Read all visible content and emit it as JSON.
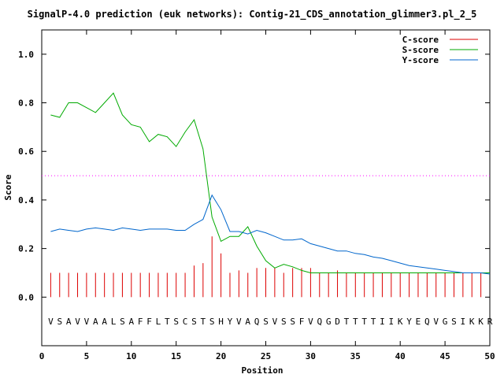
{
  "chart_data": {
    "type": "line",
    "title": "SignalP-4.0 prediction (euk networks): Contig-21_CDS_annotation_glimmer3.pl_2_5",
    "xlabel": "Position",
    "ylabel": "Score",
    "xlim": [
      0,
      50
    ],
    "ylim": [
      -0.2,
      1.1
    ],
    "xticks": [
      0,
      5,
      10,
      15,
      20,
      25,
      30,
      35,
      40,
      45,
      50
    ],
    "yticks": [
      0.0,
      0.2,
      0.4,
      0.6,
      0.8,
      1.0
    ],
    "ytick_labels": [
      "0.0",
      "0.2",
      "0.4",
      "0.6",
      "0.8",
      "1.0"
    ],
    "threshold": 0.5,
    "threshold_color": "#ff00ff",
    "legend_position": "top-right",
    "residues": [
      "V",
      "S",
      "A",
      "V",
      "V",
      "A",
      "A",
      "L",
      "S",
      "A",
      "F",
      "F",
      "L",
      "T",
      "S",
      "C",
      "S",
      "T",
      "S",
      "H",
      "Y",
      "V",
      "A",
      "Q",
      "S",
      "V",
      "S",
      "S",
      "F",
      "V",
      "Q",
      "G",
      "D",
      "T",
      "T",
      "T",
      "T",
      "I",
      "I",
      "K",
      "Y",
      "E",
      "Q",
      "V",
      "G",
      "S",
      "I",
      "K",
      "K",
      "R"
    ],
    "series": [
      {
        "name": "C-score",
        "kind": "bars",
        "color": "#dd0000",
        "x": [
          1,
          2,
          3,
          4,
          5,
          6,
          7,
          8,
          9,
          10,
          11,
          12,
          13,
          14,
          15,
          16,
          17,
          18,
          19,
          20,
          21,
          22,
          23,
          24,
          25,
          26,
          27,
          28,
          29,
          30,
          31,
          32,
          33,
          34,
          35,
          36,
          37,
          38,
          39,
          40,
          41,
          42,
          43,
          44,
          45,
          46,
          47,
          48,
          49
        ],
        "values": [
          0.1,
          0.1,
          0.1,
          0.1,
          0.1,
          0.1,
          0.1,
          0.1,
          0.1,
          0.1,
          0.1,
          0.1,
          0.1,
          0.1,
          0.1,
          0.1,
          0.13,
          0.14,
          0.25,
          0.18,
          0.1,
          0.11,
          0.1,
          0.12,
          0.12,
          0.12,
          0.1,
          0.12,
          0.12,
          0.12,
          0.1,
          0.1,
          0.11,
          0.1,
          0.1,
          0.1,
          0.1,
          0.1,
          0.1,
          0.1,
          0.1,
          0.1,
          0.1,
          0.1,
          0.1,
          0.1,
          0.1,
          0.1,
          0.1
        ]
      },
      {
        "name": "S-score",
        "kind": "line",
        "color": "#00aa00",
        "x": [
          1,
          2,
          3,
          4,
          5,
          6,
          7,
          8,
          9,
          10,
          11,
          12,
          13,
          14,
          15,
          16,
          17,
          18,
          19,
          20,
          21,
          22,
          23,
          24,
          25,
          26,
          27,
          28,
          29,
          30,
          31,
          32,
          33,
          34,
          35,
          36,
          37,
          38,
          39,
          40,
          41,
          42,
          43,
          44,
          45,
          46,
          47,
          48,
          49,
          50
        ],
        "values": [
          0.75,
          0.74,
          0.8,
          0.8,
          0.78,
          0.76,
          0.8,
          0.84,
          0.75,
          0.71,
          0.7,
          0.64,
          0.67,
          0.66,
          0.62,
          0.68,
          0.73,
          0.61,
          0.33,
          0.23,
          0.25,
          0.25,
          0.29,
          0.21,
          0.15,
          0.12,
          0.135,
          0.125,
          0.11,
          0.1,
          0.1,
          0.1,
          0.1,
          0.1,
          0.1,
          0.1,
          0.1,
          0.1,
          0.1,
          0.1,
          0.1,
          0.1,
          0.1,
          0.1,
          0.1,
          0.1,
          0.1,
          0.1,
          0.1,
          0.1
        ]
      },
      {
        "name": "Y-score",
        "kind": "line",
        "color": "#0066cc",
        "x": [
          1,
          2,
          3,
          4,
          5,
          6,
          7,
          8,
          9,
          10,
          11,
          12,
          13,
          14,
          15,
          16,
          17,
          18,
          19,
          20,
          21,
          22,
          23,
          24,
          25,
          26,
          27,
          28,
          29,
          30,
          31,
          32,
          33,
          34,
          35,
          36,
          37,
          38,
          39,
          40,
          41,
          42,
          43,
          44,
          45,
          46,
          47,
          48,
          49,
          50
        ],
        "values": [
          0.27,
          0.28,
          0.275,
          0.27,
          0.28,
          0.285,
          0.28,
          0.275,
          0.285,
          0.28,
          0.275,
          0.28,
          0.28,
          0.28,
          0.275,
          0.275,
          0.3,
          0.32,
          0.42,
          0.36,
          0.27,
          0.27,
          0.26,
          0.275,
          0.265,
          0.25,
          0.235,
          0.235,
          0.24,
          0.22,
          0.21,
          0.2,
          0.19,
          0.19,
          0.18,
          0.175,
          0.165,
          0.16,
          0.15,
          0.14,
          0.13,
          0.125,
          0.12,
          0.115,
          0.11,
          0.105,
          0.1,
          0.1,
          0.1,
          0.095
        ]
      }
    ]
  }
}
